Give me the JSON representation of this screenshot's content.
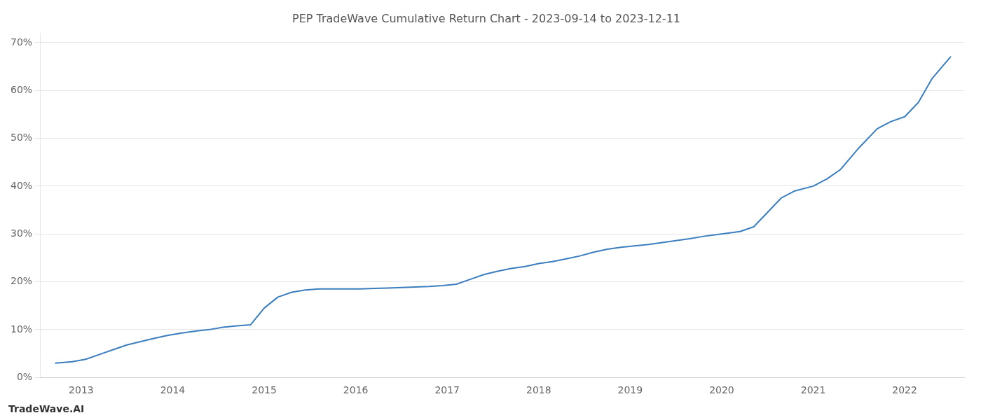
{
  "chart_data": {
    "type": "line",
    "title": "PEP TradeWave Cumulative Return Chart - 2023-09-14 to 2023-12-11",
    "annotations": [
      "TradeWave.AI"
    ],
    "color": "#3a7ebf",
    "grid": "y",
    "x": [
      2012.72,
      2012.9,
      2013.05,
      2013.2,
      2013.35,
      2013.5,
      2013.65,
      2013.8,
      2013.95,
      2014.1,
      2014.25,
      2014.4,
      2014.55,
      2014.7,
      2014.85,
      2015.0,
      2015.15,
      2015.3,
      2015.45,
      2015.6,
      2015.75,
      2015.9,
      2016.05,
      2016.2,
      2016.35,
      2016.5,
      2016.65,
      2016.8,
      2016.95,
      2017.1,
      2017.25,
      2017.4,
      2017.55,
      2017.7,
      2017.85,
      2018.0,
      2018.15,
      2018.3,
      2018.45,
      2018.6,
      2018.75,
      2018.9,
      2019.05,
      2019.2,
      2019.35,
      2019.5,
      2019.65,
      2019.8,
      2020.0,
      2020.2,
      2020.35,
      2020.5,
      2020.65,
      2020.8,
      2021.0,
      2021.15,
      2021.3,
      2021.5,
      2021.7,
      2021.85,
      2022.0,
      2022.15,
      2022.3,
      2022.5
    ],
    "values": [
      0.03,
      0.033,
      0.038,
      0.048,
      0.058,
      0.068,
      0.075,
      0.082,
      0.088,
      0.093,
      0.097,
      0.1,
      0.105,
      0.108,
      0.11,
      0.145,
      0.168,
      0.178,
      0.183,
      0.185,
      0.185,
      0.185,
      0.185,
      0.186,
      0.187,
      0.188,
      0.189,
      0.19,
      0.192,
      0.195,
      0.205,
      0.215,
      0.222,
      0.228,
      0.232,
      0.238,
      0.242,
      0.248,
      0.254,
      0.262,
      0.268,
      0.272,
      0.275,
      0.278,
      0.282,
      0.286,
      0.29,
      0.295,
      0.3,
      0.305,
      0.315,
      0.345,
      0.375,
      0.39,
      0.4,
      0.415,
      0.435,
      0.48,
      0.52,
      0.535,
      0.545,
      0.575,
      0.625,
      0.67
    ],
    "xlim": [
      2012.55,
      2022.65
    ],
    "xticks": [
      2013,
      2014,
      2015,
      2016,
      2017,
      2018,
      2019,
      2020,
      2021,
      2022
    ],
    "ylim": [
      0.0,
      0.72
    ],
    "yticks": [
      {
        "value": 0.0,
        "label": "0%"
      },
      {
        "value": 0.1,
        "label": "10%"
      },
      {
        "value": 0.2,
        "label": "20%"
      },
      {
        "value": 0.3,
        "label": "30%"
      },
      {
        "value": 0.4,
        "label": "40%"
      },
      {
        "value": 0.5,
        "label": "50%"
      },
      {
        "value": 0.6,
        "label": "60%"
      },
      {
        "value": 0.7,
        "label": "70%"
      }
    ]
  }
}
